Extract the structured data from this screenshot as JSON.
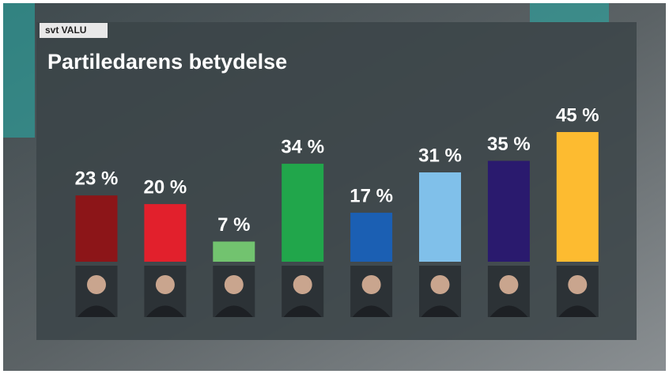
{
  "brand": "svt VALU",
  "chart_data": {
    "type": "bar",
    "title": "Partiledarens betydelse",
    "categories": [
      null,
      null,
      null,
      null,
      null,
      null,
      null,
      null
    ],
    "values": [
      23,
      20,
      7,
      34,
      17,
      31,
      35,
      45
    ],
    "value_labels": [
      "23 %",
      "20 %",
      "7 %",
      "34 %",
      "17 %",
      "31 %",
      "35 %",
      "45 %"
    ],
    "colors": [
      "#8c1518",
      "#e2202c",
      "#72c36f",
      "#21a64b",
      "#1b5fb3",
      "#80c0ea",
      "#2a1a6e",
      "#fdbb30"
    ]
  }
}
